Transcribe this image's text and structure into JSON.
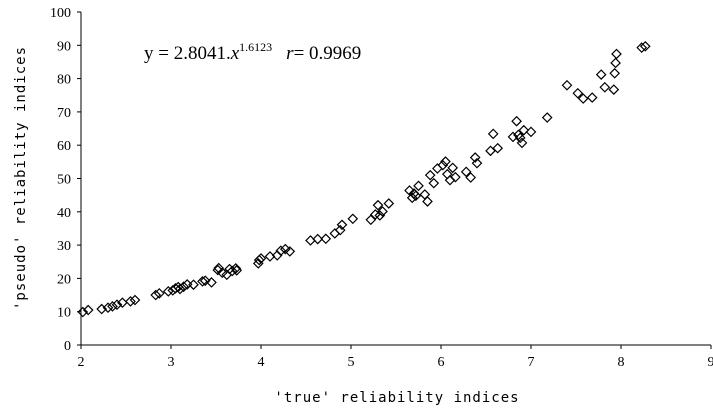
{
  "chart_data": {
    "type": "scatter",
    "xlabel": "'true' reliability indices",
    "ylabel": "'pseudo' reliability indices",
    "xlim": [
      2,
      9
    ],
    "ylim": [
      0,
      100
    ],
    "x_ticks": [
      "2",
      "3",
      "4",
      "5",
      "6",
      "7",
      "8",
      "9"
    ],
    "y_ticks": [
      "0",
      "10",
      "20",
      "30",
      "40",
      "50",
      "60",
      "70",
      "80",
      "90",
      "100"
    ],
    "grid": false,
    "marker": "diamond",
    "annotation": {
      "prefix": "y = 2.8041.",
      "var": "x",
      "exponent": "1.6123",
      "r_label": "r",
      "r_value": "= 0.9969"
    },
    "series": [
      {
        "points": [
          [
            2.02,
            9.9
          ],
          [
            2.08,
            10.5
          ],
          [
            2.23,
            10.8
          ],
          [
            2.3,
            11.2
          ],
          [
            2.35,
            11.6
          ],
          [
            2.4,
            12.1
          ],
          [
            2.46,
            12.7
          ],
          [
            2.55,
            13.1
          ],
          [
            2.6,
            13.5
          ],
          [
            2.83,
            15.0
          ],
          [
            2.87,
            15.5
          ],
          [
            2.97,
            16.1
          ],
          [
            3.02,
            16.4
          ],
          [
            3.05,
            17.0
          ],
          [
            3.08,
            17.4
          ],
          [
            3.1,
            16.8
          ],
          [
            3.14,
            17.5
          ],
          [
            3.18,
            18.2
          ],
          [
            3.25,
            18.1
          ],
          [
            3.35,
            19.1
          ],
          [
            3.38,
            19.3
          ],
          [
            3.45,
            18.8
          ],
          [
            3.52,
            22.5
          ],
          [
            3.53,
            23.1
          ],
          [
            3.57,
            21.7
          ],
          [
            3.62,
            21.1
          ],
          [
            3.65,
            22.8
          ],
          [
            3.68,
            22.2
          ],
          [
            3.72,
            23.0
          ],
          [
            3.73,
            22.4
          ],
          [
            3.97,
            24.5
          ],
          [
            3.98,
            25.5
          ],
          [
            4.0,
            26.0
          ],
          [
            4.1,
            26.6
          ],
          [
            4.18,
            26.9
          ],
          [
            4.22,
            28.3
          ],
          [
            4.27,
            28.8
          ],
          [
            4.32,
            28.1
          ],
          [
            4.55,
            31.4
          ],
          [
            4.63,
            31.8
          ],
          [
            4.72,
            31.9
          ],
          [
            4.82,
            33.5
          ],
          [
            4.88,
            34.5
          ],
          [
            4.9,
            36.1
          ],
          [
            5.02,
            37.9
          ],
          [
            5.22,
            37.6
          ],
          [
            5.27,
            39.2
          ],
          [
            5.3,
            42.0
          ],
          [
            5.32,
            38.9
          ],
          [
            5.35,
            40.1
          ],
          [
            5.42,
            42.5
          ],
          [
            5.65,
            46.4
          ],
          [
            5.68,
            44.2
          ],
          [
            5.7,
            45.5
          ],
          [
            5.72,
            44.8
          ],
          [
            5.75,
            47.8
          ],
          [
            5.82,
            45.2
          ],
          [
            5.85,
            43.1
          ],
          [
            5.88,
            51.0
          ],
          [
            5.92,
            48.6
          ],
          [
            5.96,
            53.0
          ],
          [
            6.02,
            54.0
          ],
          [
            6.05,
            55.1
          ],
          [
            6.07,
            51.3
          ],
          [
            6.1,
            49.5
          ],
          [
            6.13,
            53.2
          ],
          [
            6.16,
            50.4
          ],
          [
            6.28,
            52.0
          ],
          [
            6.33,
            50.3
          ],
          [
            6.38,
            56.3
          ],
          [
            6.4,
            54.6
          ],
          [
            6.55,
            58.3
          ],
          [
            6.58,
            63.4
          ],
          [
            6.63,
            59.1
          ],
          [
            6.8,
            62.5
          ],
          [
            6.84,
            67.2
          ],
          [
            6.86,
            63.1
          ],
          [
            6.88,
            62.2
          ],
          [
            6.9,
            60.7
          ],
          [
            6.92,
            64.5
          ],
          [
            7.0,
            64.0
          ],
          [
            7.18,
            68.3
          ],
          [
            7.4,
            78.0
          ],
          [
            7.52,
            75.6
          ],
          [
            7.58,
            74.0
          ],
          [
            7.68,
            74.3
          ],
          [
            7.78,
            81.2
          ],
          [
            7.82,
            77.4
          ],
          [
            7.92,
            76.7
          ],
          [
            7.93,
            81.6
          ],
          [
            7.94,
            84.7
          ],
          [
            7.95,
            87.4
          ],
          [
            8.23,
            89.3
          ],
          [
            8.27,
            89.7
          ]
        ]
      }
    ]
  }
}
